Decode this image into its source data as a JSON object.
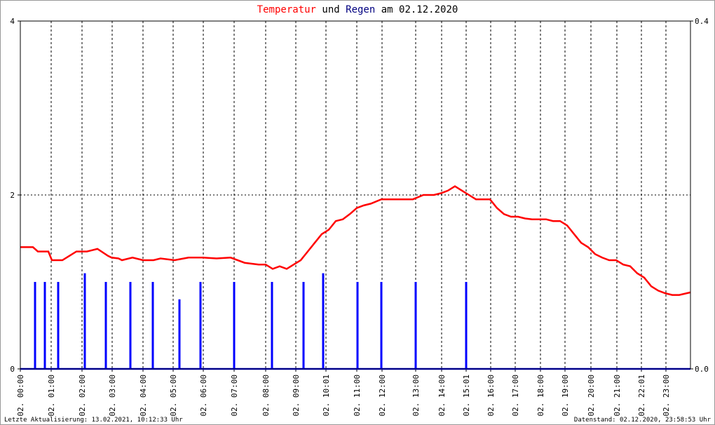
{
  "chart_data": {
    "type": "line",
    "title_parts": [
      {
        "text": "Temperatur",
        "color": "#ff0000"
      },
      {
        "text": "und",
        "color": "#000000"
      },
      {
        "text": "Regen",
        "color": "#000080"
      },
      {
        "text": "am 02.12.2020",
        "color": "#000000"
      }
    ],
    "footer_left": "Letzte Aktualisierung: 13.02.2021, 10:12:33 Uhr",
    "footer_right": "Datenstand: 02.12.2020, 23:58:53 Uhr",
    "xlim": [
      0,
      956
    ],
    "xticks": [
      {
        "value": 0,
        "label": "02. 00:00"
      },
      {
        "value": 44,
        "label": "02. 01:00"
      },
      {
        "value": 88,
        "label": "02. 02:00"
      },
      {
        "value": 131,
        "label": "02. 03:00"
      },
      {
        "value": 175,
        "label": "02. 04:00"
      },
      {
        "value": 218,
        "label": "02. 05:00"
      },
      {
        "value": 261,
        "label": "02. 06:00"
      },
      {
        "value": 305,
        "label": "02. 07:00"
      },
      {
        "value": 350,
        "label": "02. 08:00"
      },
      {
        "value": 393,
        "label": "02. 09:00"
      },
      {
        "value": 436,
        "label": "02. 10:01"
      },
      {
        "value": 480,
        "label": "02. 11:00"
      },
      {
        "value": 516,
        "label": "02. 12:00"
      },
      {
        "value": 564,
        "label": "02. 13:00"
      },
      {
        "value": 601,
        "label": "02. 14:00"
      },
      {
        "value": 636,
        "label": "02. 15:01"
      },
      {
        "value": 671,
        "label": "02. 16:00"
      },
      {
        "value": 706,
        "label": "02. 17:00"
      },
      {
        "value": 742,
        "label": "02. 18:00"
      },
      {
        "value": 777,
        "label": "02. 19:00"
      },
      {
        "value": 814,
        "label": "02. 20:00"
      },
      {
        "value": 851,
        "label": "02. 21:00"
      },
      {
        "value": 886,
        "label": "02. 22:01"
      },
      {
        "value": 921,
        "label": "02. 23:00"
      }
    ],
    "ylim": [
      0,
      4
    ],
    "yticks": [
      0,
      2,
      4
    ],
    "y2lim": [
      0,
      0.4
    ],
    "y2ticks": [
      {
        "value": 0,
        "label": "0.0"
      },
      0.4
    ],
    "grid": true,
    "series": [
      {
        "name": "Temperatur",
        "type": "line",
        "color": "#ff0000",
        "x": [
          0,
          18,
          25,
          40,
          45,
          60,
          70,
          80,
          95,
          110,
          125,
          130,
          140,
          145,
          160,
          175,
          190,
          200,
          220,
          240,
          260,
          280,
          300,
          320,
          340,
          350,
          360,
          370,
          380,
          390,
          400,
          410,
          420,
          430,
          440,
          450,
          460,
          470,
          480,
          490,
          500,
          515,
          530,
          545,
          560,
          575,
          590,
          600,
          610,
          620,
          630,
          640,
          650,
          660,
          670,
          680,
          690,
          700,
          710,
          720,
          730,
          740,
          750,
          760,
          770,
          780,
          790,
          800,
          810,
          820,
          830,
          840,
          850,
          860,
          870,
          880,
          890,
          900,
          910,
          920,
          930,
          940,
          956
        ],
        "values": [
          1.4,
          1.4,
          1.35,
          1.35,
          1.25,
          1.25,
          1.3,
          1.35,
          1.35,
          1.38,
          1.3,
          1.28,
          1.27,
          1.25,
          1.28,
          1.25,
          1.25,
          1.27,
          1.25,
          1.28,
          1.28,
          1.27,
          1.28,
          1.22,
          1.2,
          1.2,
          1.15,
          1.18,
          1.15,
          1.2,
          1.25,
          1.35,
          1.45,
          1.55,
          1.6,
          1.7,
          1.72,
          1.78,
          1.85,
          1.88,
          1.9,
          1.95,
          1.95,
          1.95,
          1.95,
          2.0,
          2.0,
          2.02,
          2.05,
          2.1,
          2.05,
          2.0,
          1.95,
          1.95,
          1.95,
          1.85,
          1.78,
          1.75,
          1.75,
          1.73,
          1.72,
          1.72,
          1.72,
          1.7,
          1.7,
          1.65,
          1.55,
          1.45,
          1.4,
          1.32,
          1.28,
          1.25,
          1.25,
          1.2,
          1.18,
          1.1,
          1.05,
          0.95,
          0.9,
          0.87,
          0.85,
          0.85,
          0.88
        ]
      },
      {
        "name": "Regen",
        "type": "bar",
        "axis": "y2",
        "color": "#0000ff",
        "x": [
          21,
          35,
          54,
          92,
          122,
          157,
          189,
          227,
          257,
          305,
          359,
          404,
          432,
          481,
          515,
          564,
          636
        ],
        "values": [
          0.1,
          0.1,
          0.1,
          0.11,
          0.1,
          0.1,
          0.1,
          0.08,
          0.1,
          0.1,
          0.1,
          0.1,
          0.11,
          0.1,
          0.1,
          0.1,
          0.1
        ]
      }
    ]
  }
}
